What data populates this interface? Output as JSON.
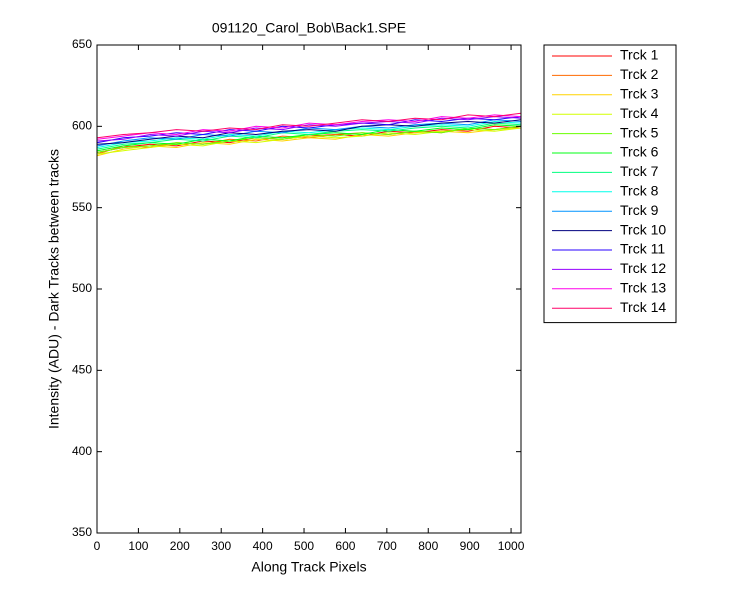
{
  "chart_data": {
    "type": "line",
    "title": "091120_Carol_Bob\\Back1.SPE",
    "xlabel": "Along Track Pixels",
    "ylabel": "Intensity (ADU) - Dark Tracks between tracks",
    "x": [
      1,
      64,
      128,
      192,
      256,
      320,
      384,
      448,
      512,
      576,
      640,
      704,
      768,
      832,
      896,
      960,
      1024
    ],
    "xlim": [
      0,
      1024
    ],
    "xticks": [
      0,
      100,
      200,
      300,
      400,
      500,
      600,
      700,
      800,
      900,
      1000
    ],
    "ylim": [
      350,
      650
    ],
    "yticks": [
      350,
      400,
      450,
      500,
      550,
      600,
      650
    ],
    "legend": "outside-right",
    "series": [
      {
        "name": "Trck 1",
        "color": "#ff0000",
        "values": [
          584,
          587,
          589,
          588,
          591,
          590,
          593,
          592,
          594,
          595,
          594,
          597,
          596,
          598,
          597,
          600,
          599
        ]
      },
      {
        "name": "Trck 2",
        "color": "#ff6a00",
        "values": [
          583,
          588,
          587,
          590,
          589,
          592,
          591,
          594,
          593,
          595,
          596,
          595,
          597,
          596,
          599,
          598,
          600
        ]
      },
      {
        "name": "Trck 3",
        "color": "#ffd400",
        "values": [
          582,
          586,
          588,
          587,
          590,
          589,
          592,
          591,
          593,
          592,
          595,
          594,
          596,
          597,
          596,
          598,
          599
        ]
      },
      {
        "name": "Trck 4",
        "color": "#d4ff00",
        "values": [
          583,
          585,
          587,
          589,
          588,
          591,
          590,
          592,
          594,
          593,
          594,
          596,
          595,
          597,
          598,
          597,
          599
        ]
      },
      {
        "name": "Trck 5",
        "color": "#6aff00",
        "values": [
          584,
          587,
          588,
          590,
          589,
          591,
          593,
          592,
          595,
          594,
          596,
          595,
          597,
          596,
          599,
          598,
          600
        ]
      },
      {
        "name": "Trck 6",
        "color": "#00ff15",
        "values": [
          585,
          588,
          590,
          589,
          592,
          591,
          594,
          593,
          595,
          596,
          595,
          598,
          597,
          599,
          598,
          601,
          600
        ]
      },
      {
        "name": "Trck 7",
        "color": "#00ff7f",
        "values": [
          586,
          589,
          590,
          592,
          591,
          594,
          593,
          596,
          595,
          597,
          598,
          597,
          599,
          600,
          599,
          602,
          601
        ]
      },
      {
        "name": "Trck 8",
        "color": "#00ffea",
        "values": [
          587,
          590,
          591,
          593,
          592,
          595,
          594,
          597,
          596,
          598,
          599,
          598,
          600,
          601,
          600,
          603,
          602
        ]
      },
      {
        "name": "Trck 9",
        "color": "#0094ff",
        "values": [
          588,
          591,
          593,
          592,
          595,
          594,
          597,
          596,
          599,
          598,
          600,
          599,
          601,
          602,
          601,
          604,
          603
        ]
      },
      {
        "name": "Trck 10",
        "color": "#00007f",
        "values": [
          589,
          590,
          592,
          594,
          593,
          596,
          595,
          597,
          598,
          597,
          600,
          601,
          600,
          602,
          603,
          602,
          604
        ]
      },
      {
        "name": "Trck 11",
        "color": "#2a00ff",
        "values": [
          590,
          593,
          594,
          596,
          595,
          598,
          597,
          600,
          599,
          601,
          602,
          601,
          604,
          603,
          605,
          604,
          606
        ]
      },
      {
        "name": "Trck 12",
        "color": "#9400ff",
        "values": [
          591,
          592,
          595,
          594,
          597,
          596,
          599,
          598,
          601,
          600,
          602,
          603,
          602,
          605,
          604,
          606,
          605
        ]
      },
      {
        "name": "Trck 13",
        "color": "#ff00ea",
        "values": [
          592,
          594,
          596,
          595,
          598,
          597,
          600,
          599,
          602,
          601,
          603,
          604,
          603,
          606,
          605,
          607,
          606
        ]
      },
      {
        "name": "Trck 14",
        "color": "#ff0068",
        "values": [
          593,
          595,
          596,
          598,
          597,
          599,
          598,
          601,
          600,
          602,
          604,
          603,
          605,
          604,
          607,
          606,
          608
        ]
      }
    ]
  }
}
